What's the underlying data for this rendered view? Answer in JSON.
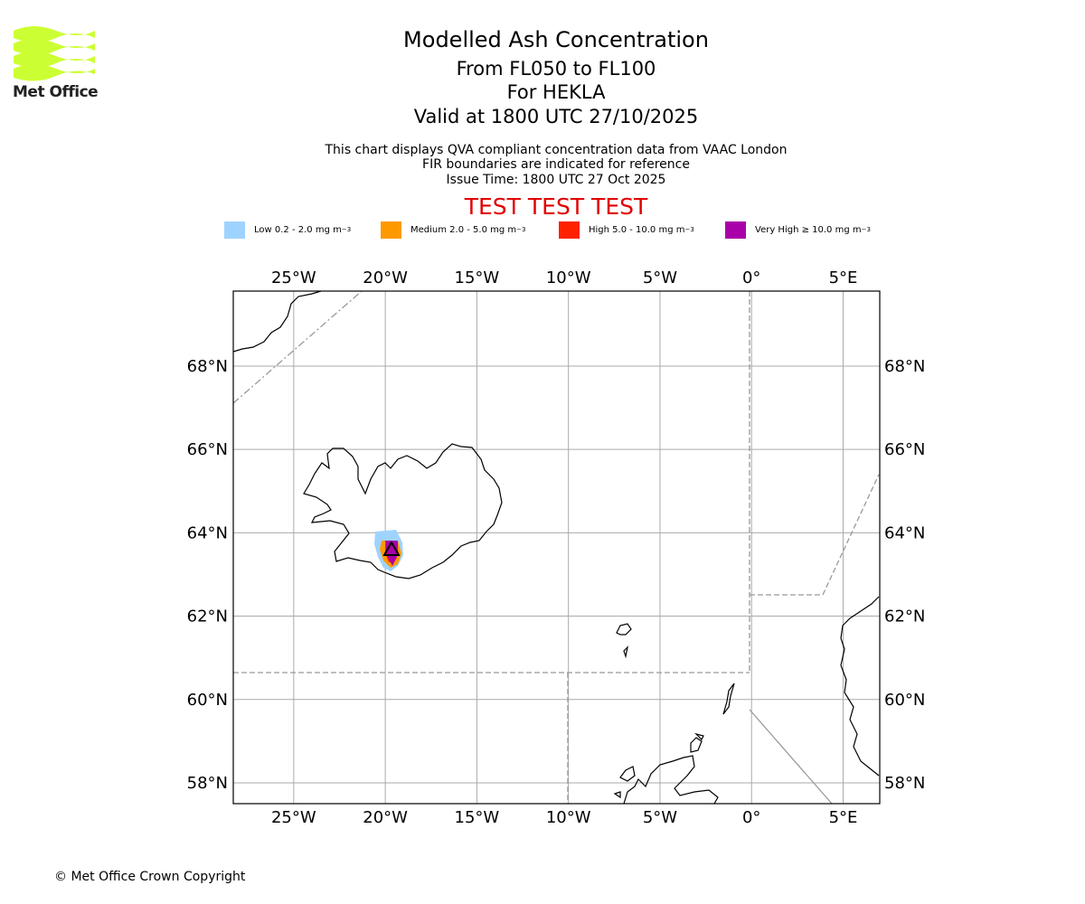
{
  "logo": {
    "name": "Met Office",
    "color": "#ccff33"
  },
  "header": {
    "title": "Modelled Ash Concentration",
    "levels": "From FL050 to FL100",
    "volcano": "For HEKLA",
    "valid": "Valid at 1800 UTC 27/10/2025",
    "note1": "This chart displays QVA compliant concentration data from VAAC London",
    "note2": "FIR boundaries are indicated for reference",
    "issue": "Issue Time: 1800 UTC 27 Oct 2025",
    "test": "TEST TEST TEST"
  },
  "legend": [
    {
      "label": "Low 0.2 - 2.0 mg m",
      "sup": "−3",
      "color": "#9fd3ff"
    },
    {
      "label": "Medium 2.0 - 5.0 mg m",
      "sup": "−3",
      "color": "#ff9900"
    },
    {
      "label": "High 5.0 - 10.0 mg m",
      "sup": "−3",
      "color": "#ff2200"
    },
    {
      "label": "Very High  ≥  10.0 mg m",
      "sup": "−3",
      "color": "#aa00aa"
    }
  ],
  "map": {
    "lon_range": [
      -28.3,
      7.0
    ],
    "lat_range": [
      57.5,
      69.8
    ],
    "lon_ticks": [
      {
        "value": -25,
        "label": "25°W"
      },
      {
        "value": -20,
        "label": "20°W"
      },
      {
        "value": -15,
        "label": "15°W"
      },
      {
        "value": -10,
        "label": "10°W"
      },
      {
        "value": -5,
        "label": "5°W"
      },
      {
        "value": 0,
        "label": "0°"
      },
      {
        "value": 5,
        "label": "5°E"
      }
    ],
    "lat_ticks": [
      {
        "value": 58,
        "label": "58°N"
      },
      {
        "value": 60,
        "label": "60°N"
      },
      {
        "value": 62,
        "label": "62°N"
      },
      {
        "value": 64,
        "label": "64°N"
      },
      {
        "value": 66,
        "label": "66°N"
      },
      {
        "value": 68,
        "label": "68°N"
      }
    ]
  },
  "copyright": "© Met Office Crown Copyright"
}
